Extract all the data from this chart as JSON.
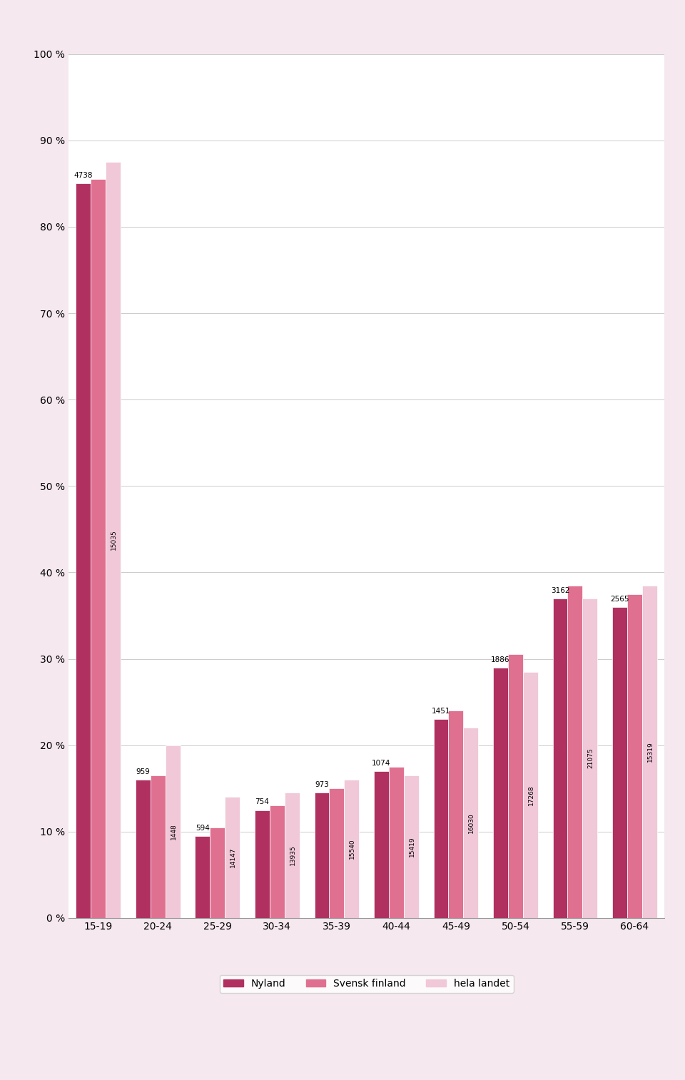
{
  "categories": [
    "15-19",
    "20-24",
    "25-29",
    "30-34",
    "35-39",
    "40-44",
    "45-49",
    "50-54",
    "55-59",
    "60-64"
  ],
  "series": {
    "Nyland": [
      85.0,
      16.0,
      9.5,
      12.5,
      14.5,
      17.0,
      23.0,
      29.0,
      37.0,
      36.0
    ],
    "Svensk finland": [
      85.5,
      16.5,
      10.5,
      13.0,
      15.0,
      17.5,
      24.0,
      30.5,
      38.5,
      37.5
    ],
    "hela landet": [
      87.5,
      20.0,
      14.0,
      14.5,
      16.0,
      16.5,
      22.0,
      28.5,
      37.0,
      38.5
    ]
  },
  "top_labels": {
    "Nyland": [
      4738,
      959,
      594,
      754,
      973,
      1074,
      1451,
      1886,
      3162,
      2565
    ],
    "hela_landet_rotated": [
      15035,
      1448,
      14147,
      13935,
      15540,
      15419,
      16030,
      17268,
      21075,
      15319
    ]
  },
  "colors": {
    "Nyland": "#b03060",
    "Svensk finland": "#e07090",
    "hela landet": "#f0c8d8"
  },
  "yticks": [
    0,
    10,
    20,
    30,
    40,
    50,
    60,
    70,
    80,
    90,
    100
  ],
  "ytick_labels": [
    "0 %",
    "10 %",
    "20 %",
    "30 %",
    "40 %",
    "50 %",
    "60 %",
    "70 %",
    "80 %",
    "90 %",
    "100 %"
  ],
  "background_color": "#f5e8ee",
  "plot_background": "#ffffff",
  "legend_labels": [
    "Nyland",
    "Svensk finland",
    "hela landet"
  ]
}
